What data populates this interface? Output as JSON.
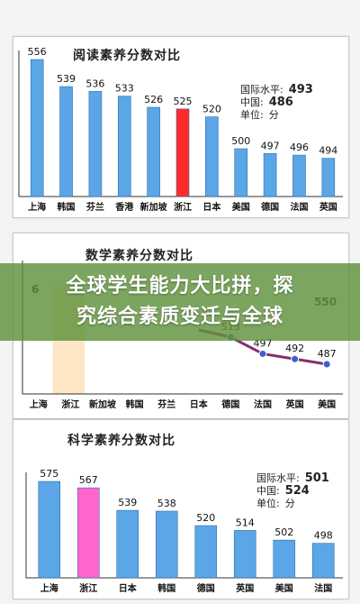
{
  "banner": {
    "line1": "全球学生能力大比拼，探",
    "line2": "究综合素质变迁与全球"
  },
  "chart_data": [
    {
      "type": "bar",
      "title": "阅读素养分数对比",
      "categories": [
        "上海",
        "韩国",
        "芬兰",
        "香港",
        "新加坡",
        "浙江",
        "日本",
        "美国",
        "德国",
        "法国",
        "英国"
      ],
      "values": [
        556,
        539,
        536,
        533,
        526,
        525,
        520,
        500,
        497,
        496,
        494
      ],
      "highlight": "浙江",
      "legend": [
        {
          "label": "国际水平:",
          "value": "493"
        },
        {
          "label": "中国:",
          "value": "486"
        },
        {
          "label": "单位:",
          "value": "分"
        }
      ],
      "colors": {
        "bar": "#5aa6e6",
        "highlight": "#ff2a2a"
      }
    },
    {
      "type": "line",
      "title": "数学素养分数对比",
      "categories": [
        "上海",
        "浙江",
        "新加坡",
        "韩国",
        "芬兰",
        "日本",
        "德国",
        "法国",
        "英国",
        "美国"
      ],
      "points": [
        {
          "category": "德国",
          "value": 513
        },
        {
          "category": "法国",
          "value": 497
        },
        {
          "category": "英国",
          "value": 492
        },
        {
          "category": "美国",
          "value": 487
        }
      ],
      "visible_labels": {
        "start": "6",
        "legend_tail": "550"
      },
      "colors": {
        "line": "#8a2c6e",
        "point": "#3a5fd0"
      }
    },
    {
      "type": "bar",
      "title": "科学素养分数对比",
      "categories": [
        "上海",
        "浙江",
        "日本",
        "韩国",
        "德国",
        "英国",
        "美国",
        "法国"
      ],
      "values": [
        575,
        567,
        539,
        538,
        520,
        514,
        502,
        498
      ],
      "highlight": "浙江",
      "legend": [
        {
          "label": "国际水平:",
          "value": "501"
        },
        {
          "label": "中国:",
          "value": "524"
        },
        {
          "label": "单位:",
          "value": "分"
        }
      ],
      "colors": {
        "bar": "#5aa6e6",
        "highlight": "#ff66cc"
      }
    }
  ]
}
